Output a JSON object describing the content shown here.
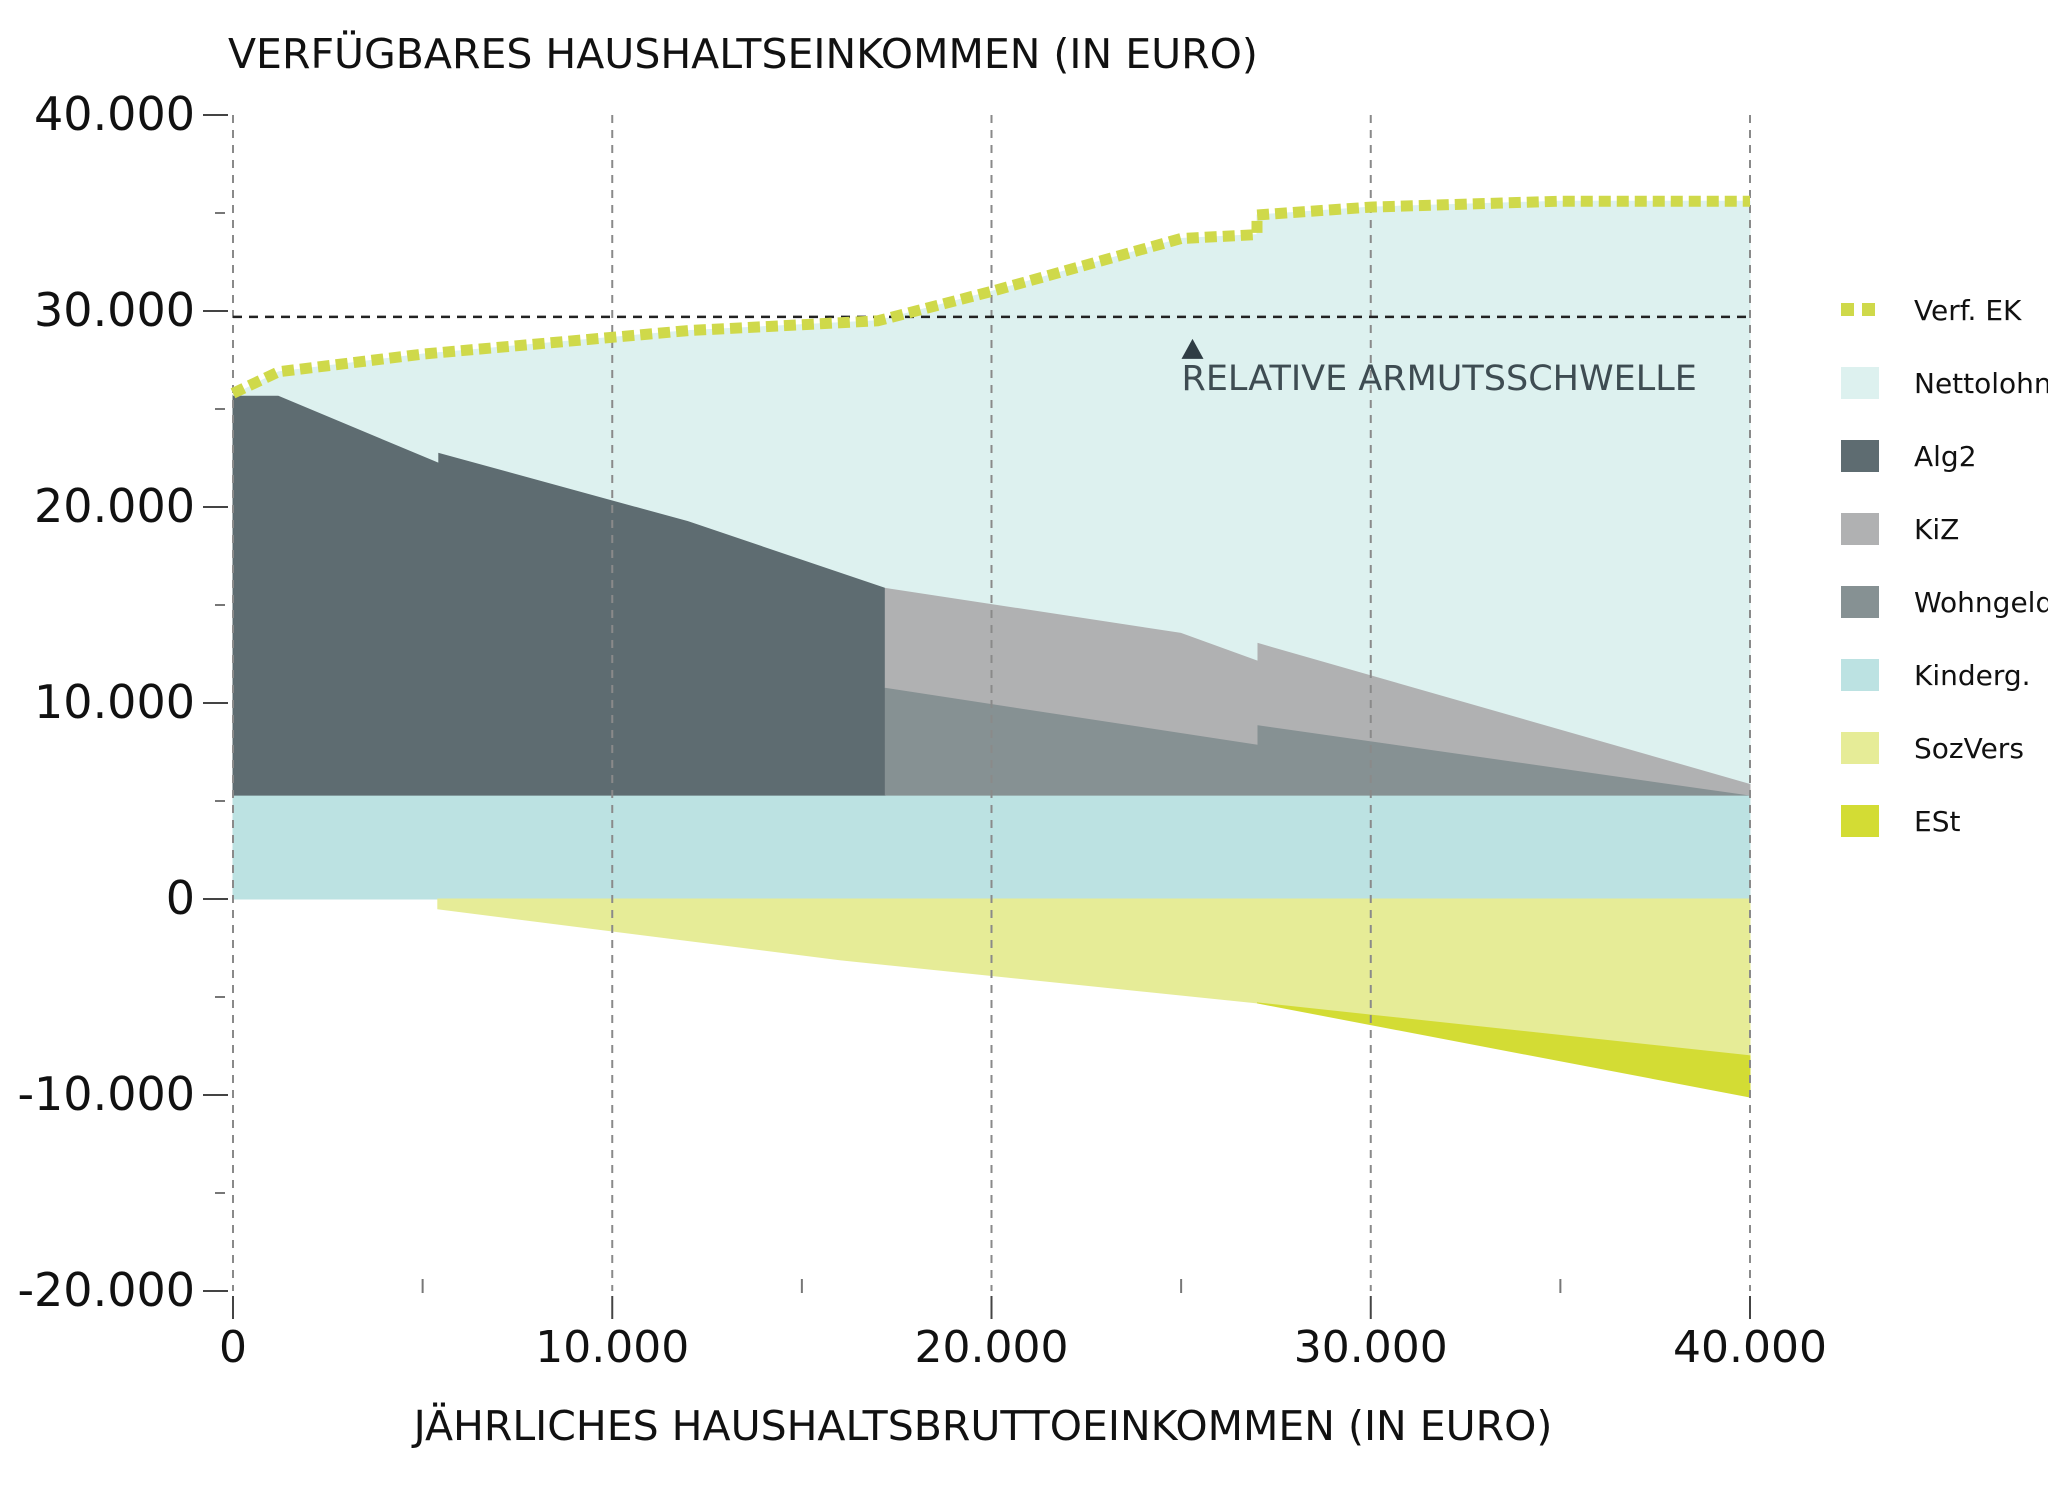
{
  "chart_data": {
    "type": "area",
    "title": "",
    "ylabel": "VERFÜGBARES HAUSHALTSEINKOMMEN (IN EURO)",
    "xlabel": "JÄHRLICHES HAUSHALTSBRUTTOEINKOMMEN (IN EURO)",
    "xlim": [
      0,
      40000
    ],
    "ylim": [
      -20000,
      40000
    ],
    "x_ticks": [
      0,
      10000,
      20000,
      30000,
      40000
    ],
    "x_tick_labels": [
      "0",
      "10.000",
      "20.000",
      "30.000",
      "40.000"
    ],
    "y_ticks": [
      -20000,
      -10000,
      0,
      10000,
      20000,
      30000,
      40000
    ],
    "y_tick_labels": [
      "-20.000",
      "-10.000",
      "0",
      "10.000",
      "20.000",
      "30.000",
      "40.000"
    ],
    "grid": "vertical dashed",
    "legend_position": "right",
    "series": [
      {
        "name": "Kinderg.",
        "color": "#bce2e2",
        "points": [
          [
            0,
            0
          ],
          [
            40000,
            0
          ],
          [
            40000,
            5300
          ],
          [
            0,
            5300
          ]
        ]
      },
      {
        "name": "Alg2",
        "color": "#5e6c71",
        "points": [
          [
            0,
            5300
          ],
          [
            0,
            25700
          ],
          [
            1200,
            25700
          ],
          [
            5400,
            22300
          ],
          [
            5400,
            22800
          ],
          [
            12000,
            19300
          ],
          [
            17200,
            15900
          ],
          [
            17200,
            5300
          ]
        ]
      },
      {
        "name": "Wohngeld",
        "color": "#869193",
        "points": [
          [
            17200,
            5300
          ],
          [
            17200,
            10800
          ],
          [
            27000,
            7900
          ],
          [
            27000,
            8900
          ],
          [
            40000,
            5300
          ]
        ]
      },
      {
        "name": "KiZ",
        "color": "#b0b1b2",
        "points": [
          [
            17200,
            10800
          ],
          [
            17200,
            15900
          ],
          [
            25000,
            13600
          ],
          [
            27000,
            12200
          ],
          [
            27000,
            13100
          ],
          [
            40000,
            5900
          ],
          [
            40000,
            5300
          ],
          [
            27000,
            8900
          ],
          [
            27000,
            7900
          ]
        ]
      },
      {
        "name": "Nettolohn",
        "color": "#ddf1ef",
        "points": [
          [
            0,
            25700
          ],
          [
            0,
            25700
          ],
          [
            1200,
            26900
          ],
          [
            5000,
            27800
          ],
          [
            12000,
            29000
          ],
          [
            17000,
            29500
          ],
          [
            20000,
            31000
          ],
          [
            25000,
            33700
          ],
          [
            27000,
            33900
          ],
          [
            27000,
            34900
          ],
          [
            30000,
            35300
          ],
          [
            35000,
            35600
          ],
          [
            40000,
            35600
          ],
          [
            40000,
            5900
          ],
          [
            27000,
            13100
          ],
          [
            27000,
            12200
          ],
          [
            25000,
            13600
          ],
          [
            17200,
            15900
          ],
          [
            12000,
            19300
          ],
          [
            5400,
            22800
          ],
          [
            5400,
            22300
          ],
          [
            1200,
            25700
          ]
        ]
      },
      {
        "name": "SozVers",
        "color": "#e6ec97",
        "points": [
          [
            5400,
            0
          ],
          [
            40000,
            0
          ],
          [
            40000,
            -8000
          ],
          [
            27000,
            -5300
          ],
          [
            16000,
            -3100
          ],
          [
            5400,
            -500
          ]
        ]
      },
      {
        "name": "ESt",
        "color": "#d3dc34",
        "points": [
          [
            27000,
            -5300
          ],
          [
            40000,
            -8000
          ],
          [
            40000,
            -10100
          ]
        ]
      }
    ],
    "lines": [
      {
        "name": "Verf. EK",
        "color": "#cfd94a",
        "style": "dotted-thick",
        "points": [
          [
            0,
            25800
          ],
          [
            1200,
            26900
          ],
          [
            5000,
            27800
          ],
          [
            12000,
            29000
          ],
          [
            17000,
            29500
          ],
          [
            20000,
            31000
          ],
          [
            25000,
            33700
          ],
          [
            27000,
            33900
          ],
          [
            27000,
            34900
          ],
          [
            30000,
            35300
          ],
          [
            35000,
            35600
          ],
          [
            40000,
            35600
          ]
        ]
      }
    ],
    "reference_lines": [
      {
        "y": 29700,
        "style": "dashed",
        "color": "#222222"
      }
    ],
    "annotations": [
      {
        "text": "RELATIVE ARMUTSSCHWELLE",
        "x": 25300,
        "y": 29700
      }
    ]
  },
  "legend": [
    {
      "label": "Verf. EK",
      "color": "#cfd94a",
      "kind": "dotted"
    },
    {
      "label": "Nettolohn",
      "color": "#ddf1ef",
      "kind": "box"
    },
    {
      "label": "Alg2",
      "color": "#5e6c71",
      "kind": "box"
    },
    {
      "label": "KiZ",
      "color": "#b0b1b2",
      "kind": "box"
    },
    {
      "label": "Wohngeld",
      "color": "#869193",
      "kind": "box"
    },
    {
      "label": "Kinderg.",
      "color": "#bce2e2",
      "kind": "box"
    },
    {
      "label": "SozVers",
      "color": "#e6ec97",
      "kind": "box"
    },
    {
      "label": "ESt",
      "color": "#d3dc34",
      "kind": "box"
    }
  ]
}
